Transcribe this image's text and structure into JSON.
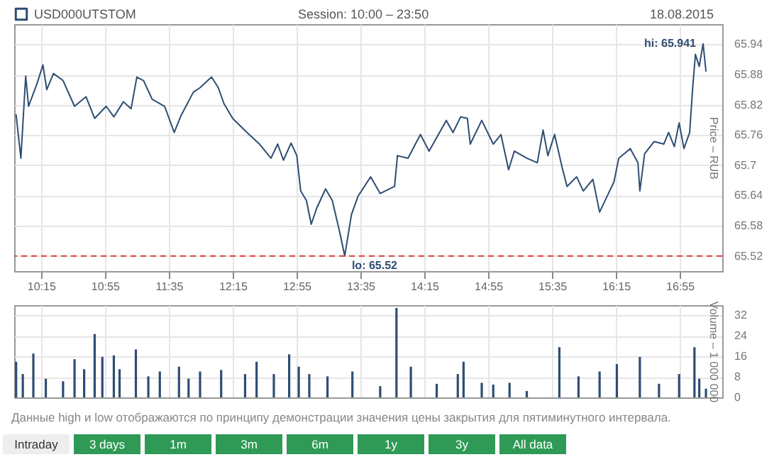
{
  "chart_data": [
    {
      "type": "line",
      "subtitle": "Session: 10:00 – 23:50",
      "ylabel": "Price – RUB",
      "x": [
        9.99,
        10.04,
        10.09,
        10.12,
        10.21,
        10.27,
        10.31,
        10.38,
        10.48,
        10.6,
        10.72,
        10.81,
        10.93,
        11.01,
        11.11,
        11.19,
        11.25,
        11.32,
        11.41,
        11.54,
        11.64,
        11.71,
        11.84,
        11.91,
        12.03,
        12.1,
        12.16,
        12.25,
        12.4,
        12.53,
        12.65,
        12.72,
        12.78,
        12.86,
        12.92,
        12.96,
        13.02,
        13.07,
        13.13,
        13.22,
        13.29,
        13.37,
        13.42,
        13.49,
        13.56,
        13.69,
        13.79,
        13.94,
        13.97,
        14.08,
        14.21,
        14.3,
        14.48,
        14.55,
        14.63,
        14.7,
        14.73,
        14.85,
        14.97,
        15.05,
        15.13,
        15.19,
        15.32,
        15.43,
        15.49,
        15.54,
        15.61,
        15.69,
        15.74,
        15.84,
        15.91,
        16.01,
        16.08,
        16.16,
        16.23,
        16.28,
        16.4,
        16.48,
        16.5,
        16.55,
        16.65,
        16.75,
        16.8,
        16.86,
        16.91,
        16.96,
        17.02,
        17.05,
        17.08,
        17.12,
        17.16,
        17.19
      ],
      "series": [
        {
          "name": "USD000UTSTOM",
          "color": "#2e4d73",
          "values": [
            65.8,
            65.714,
            65.877,
            65.817,
            65.863,
            65.899,
            65.85,
            65.882,
            65.868,
            65.817,
            65.836,
            65.793,
            65.817,
            65.796,
            65.826,
            65.812,
            65.875,
            65.868,
            65.831,
            65.817,
            65.765,
            65.798,
            65.845,
            65.854,
            65.875,
            65.854,
            65.822,
            65.793,
            65.765,
            65.742,
            65.714,
            65.742,
            65.71,
            65.744,
            65.719,
            65.649,
            65.63,
            65.583,
            65.616,
            65.653,
            65.63,
            65.565,
            65.52,
            65.602,
            65.639,
            65.677,
            65.644,
            65.658,
            65.719,
            65.714,
            65.761,
            65.728,
            65.789,
            65.765,
            65.796,
            65.793,
            65.742,
            65.789,
            65.742,
            65.761,
            65.691,
            65.728,
            65.714,
            65.705,
            65.77,
            65.719,
            65.761,
            65.695,
            65.658,
            65.677,
            65.649,
            65.672,
            65.607,
            65.639,
            65.667,
            65.714,
            65.733,
            65.705,
            65.649,
            65.723,
            65.747,
            65.742,
            65.765,
            65.737,
            65.784,
            65.733,
            65.765,
            65.85,
            65.92,
            65.896,
            65.941,
            65.887
          ]
        }
      ],
      "xlim": [
        9.97,
        17.36
      ],
      "xticks": [
        {
          "value": 10.25,
          "label": "10:15"
        },
        {
          "value": 10.9167,
          "label": "10:55"
        },
        {
          "value": 11.5833,
          "label": "11:35"
        },
        {
          "value": 12.25,
          "label": "12:15"
        },
        {
          "value": 12.9167,
          "label": "12:55"
        },
        {
          "value": 13.5833,
          "label": "13:35"
        },
        {
          "value": 14.25,
          "label": "14:15"
        },
        {
          "value": 14.9167,
          "label": "14:55"
        },
        {
          "value": 15.5833,
          "label": "15:35"
        },
        {
          "value": 16.25,
          "label": "16:15"
        },
        {
          "value": 16.9167,
          "label": "16:55"
        }
      ],
      "ylim": [
        65.49,
        65.98
      ],
      "yticks": [
        65.52,
        65.58,
        65.64,
        65.7,
        65.76,
        65.82,
        65.88,
        65.94
      ],
      "grid": true,
      "legend": "top left",
      "ref_lines": [
        {
          "axis": "y",
          "value": 65.52,
          "color": "#e03c3c",
          "line_style": "dashed"
        }
      ],
      "annotations": [
        "18.08.2015",
        {
          "text": "hi: 65.941",
          "x": 17.16,
          "y": 65.941
        },
        {
          "text": "lo: 65.52",
          "x": 13.42,
          "y": 65.52
        }
      ]
    },
    {
      "type": "bar",
      "ylabel": "Volume – 1 000 000",
      "color": "#2e4d73",
      "x": [
        9.99,
        10.06,
        10.17,
        10.3,
        10.48,
        10.6,
        10.7,
        10.81,
        10.89,
        11.01,
        11.07,
        11.24,
        11.37,
        11.49,
        11.69,
        11.79,
        11.91,
        12.13,
        12.38,
        12.5,
        12.68,
        12.84,
        12.94,
        13.05,
        13.24,
        13.5,
        13.79,
        13.96,
        14.11,
        14.38,
        14.6,
        14.66,
        14.85,
        14.97,
        15.14,
        15.32,
        15.66,
        15.86,
        16.08,
        16.26,
        16.5,
        16.7,
        16.91,
        17.07,
        17.12,
        17.19
      ],
      "values": [
        13.9,
        9.1,
        17.1,
        7.3,
        6.3,
        14.9,
        11,
        24.7,
        15.8,
        16.4,
        11,
        18.7,
        8.2,
        10.1,
        12,
        7.3,
        10.1,
        10.7,
        9.1,
        13.9,
        9.1,
        16.8,
        12,
        9.1,
        8.2,
        10.1,
        4.4,
        34.9,
        12,
        5.3,
        9.1,
        13.9,
        5.7,
        5,
        5.7,
        2.5,
        19.6,
        8.2,
        10.1,
        13,
        15.8,
        5.3,
        9.1,
        19.6,
        7.3,
        3.4
      ],
      "xlim": [
        9.97,
        17.36
      ],
      "xticks": [
        {
          "value": 10.25,
          "label": null
        },
        {
          "value": 10.9167,
          "label": null
        },
        {
          "value": 11.5833,
          "label": null
        },
        {
          "value": 12.25,
          "label": null
        },
        {
          "value": 12.9167,
          "label": null
        },
        {
          "value": 13.5833,
          "label": null
        },
        {
          "value": 14.25,
          "label": null
        },
        {
          "value": 14.9167,
          "label": null
        },
        {
          "value": 15.5833,
          "label": null
        },
        {
          "value": 16.25,
          "label": null
        },
        {
          "value": 16.9167,
          "label": null
        }
      ],
      "ylim": [
        0,
        36
      ],
      "yticks": [
        0,
        8,
        16,
        24,
        32
      ],
      "grid": true,
      "tick_labels": "y",
      "annotations": [
        "Данные high и low отображаются по принципу демонстрации значения цены закрытия для пятиминутного интервала.",
        "Intraday",
        "3 days",
        "1m",
        "3m",
        "6m",
        "1y",
        "3y",
        "All data"
      ]
    }
  ]
}
